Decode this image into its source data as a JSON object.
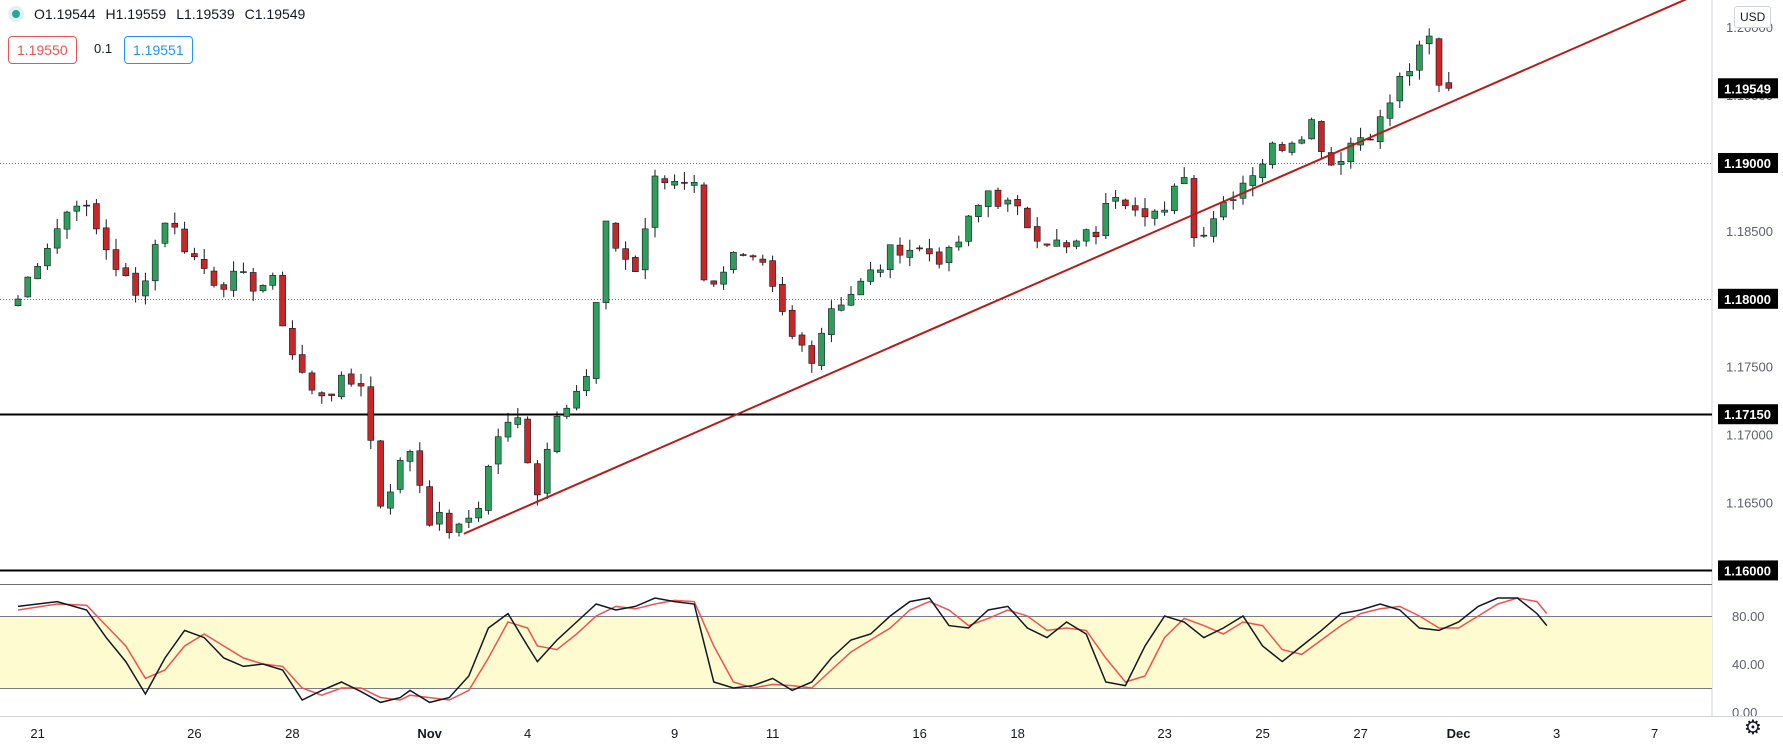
{
  "ohlc": {
    "open": "O1.19544",
    "high": "H1.19559",
    "low": "L1.19539",
    "close": "C1.19549"
  },
  "trade": {
    "sell": "1.19550",
    "spread": "0.1",
    "buy": "1.19551"
  },
  "currency": "USD",
  "colors": {
    "up": "#26a69a",
    "down": "#ef5350",
    "upBody": "#2e9e5b",
    "downBody": "#c62828",
    "trend": "#b71c1c",
    "stochK": "#131722",
    "stochD": "#ef5350",
    "band": "#fffbd0"
  },
  "icons": {
    "symbol": "status-dot-icon",
    "settings": "gear-icon"
  },
  "chart_data": [
    {
      "type": "candlestick",
      "title": "",
      "ylim": [
        1.159,
        1.202
      ],
      "yticks": [
        1.165,
        1.17,
        1.175,
        1.18,
        1.185,
        1.19,
        1.195,
        1.2
      ],
      "xlabels": [
        "21",
        "26",
        "28",
        "Nov",
        "4",
        "9",
        "11",
        "16",
        "18",
        "23",
        "25",
        "27",
        "Dec",
        "3",
        "7"
      ],
      "xlabel_index": [
        2,
        18,
        28,
        42,
        52,
        67,
        77,
        92,
        102,
        117,
        127,
        137,
        147,
        157,
        167
      ],
      "last_price": "1.19549",
      "horizontal_levels": [
        {
          "value": 1.19,
          "label": "1.19000",
          "style": "dotted"
        },
        {
          "value": 1.18,
          "label": "1.18000",
          "style": "dotted"
        },
        {
          "value": 1.1715,
          "label": "1.17150",
          "style": "solid"
        },
        {
          "value": 1.16,
          "label": "1.16000",
          "style": "solid"
        }
      ],
      "trendline": {
        "from": {
          "i": 45.5,
          "price": 1.1627
        },
        "to": {
          "i": 171,
          "price": 1.2023
        }
      },
      "waypoints": [
        [
          0,
          1.18
        ],
        [
          2,
          1.183
        ],
        [
          6,
          1.1875
        ],
        [
          8,
          1.185
        ],
        [
          12,
          1.18
        ],
        [
          15,
          1.186
        ],
        [
          18,
          1.183
        ],
        [
          20,
          1.1815
        ],
        [
          26,
          1.181
        ],
        [
          28,
          1.176
        ],
        [
          30,
          1.173
        ],
        [
          35,
          1.174
        ],
        [
          37,
          1.165
        ],
        [
          40,
          1.169
        ],
        [
          42,
          1.164
        ],
        [
          45,
          1.1628
        ],
        [
          47,
          1.165
        ],
        [
          49,
          1.17
        ],
        [
          51,
          1.171
        ],
        [
          53,
          1.166
        ],
        [
          55,
          1.172
        ],
        [
          58,
          1.174
        ],
        [
          60,
          1.185
        ],
        [
          63,
          1.182
        ],
        [
          65,
          1.1885
        ],
        [
          69,
          1.189
        ],
        [
          70,
          1.181
        ],
        [
          73,
          1.183
        ],
        [
          76,
          1.182
        ],
        [
          79,
          1.177
        ],
        [
          81,
          1.176
        ],
        [
          83,
          1.1795
        ],
        [
          86,
          1.181
        ],
        [
          90,
          1.184
        ],
        [
          95,
          1.183
        ],
        [
          99,
          1.188
        ],
        [
          104,
          1.185
        ],
        [
          107,
          1.1835
        ],
        [
          110,
          1.185
        ],
        [
          112,
          1.188
        ],
        [
          117,
          1.186
        ],
        [
          119,
          1.1895
        ],
        [
          120,
          1.1845
        ],
        [
          124,
          1.188
        ],
        [
          128,
          1.191
        ],
        [
          132,
          1.193
        ],
        [
          134,
          1.19
        ],
        [
          136,
          1.1915
        ],
        [
          139,
          1.193
        ],
        [
          141,
          1.196
        ],
        [
          143,
          1.198
        ],
        [
          144,
          1.199
        ],
        [
          145,
          1.1955
        ],
        [
          146,
          1.1955
        ]
      ]
    },
    {
      "type": "line",
      "title": "",
      "ylim": [
        0,
        100
      ],
      "yticks": [
        0,
        40,
        80
      ],
      "band": [
        20,
        80
      ],
      "series": [
        {
          "values": [
            [
              0,
              88
            ],
            [
              4,
              92
            ],
            [
              7,
              85
            ],
            [
              9,
              62
            ],
            [
              11,
              42
            ],
            [
              13,
              15
            ],
            [
              15,
              45
            ],
            [
              17,
              68
            ],
            [
              19,
              62
            ],
            [
              21,
              45
            ],
            [
              23,
              38
            ],
            [
              25,
              40
            ],
            [
              27,
              35
            ],
            [
              29,
              10
            ],
            [
              31,
              18
            ],
            [
              33,
              25
            ],
            [
              35,
              17
            ],
            [
              37,
              8
            ],
            [
              39,
              12
            ],
            [
              40,
              18
            ],
            [
              42,
              8
            ],
            [
              44,
              12
            ],
            [
              46,
              30
            ],
            [
              48,
              70
            ],
            [
              50,
              82
            ],
            [
              52,
              55
            ],
            [
              53,
              42
            ],
            [
              55,
              60
            ],
            [
              57,
              75
            ],
            [
              59,
              90
            ],
            [
              61,
              85
            ],
            [
              63,
              88
            ],
            [
              65,
              95
            ],
            [
              67,
              92
            ],
            [
              69,
              90
            ],
            [
              71,
              25
            ],
            [
              73,
              20
            ],
            [
              75,
              22
            ],
            [
              77,
              28
            ],
            [
              79,
              18
            ],
            [
              81,
              25
            ],
            [
              83,
              45
            ],
            [
              85,
              60
            ],
            [
              87,
              65
            ],
            [
              89,
              80
            ],
            [
              91,
              92
            ],
            [
              93,
              95
            ],
            [
              95,
              72
            ],
            [
              97,
              70
            ],
            [
              99,
              85
            ],
            [
              101,
              88
            ],
            [
              103,
              70
            ],
            [
              105,
              62
            ],
            [
              107,
              75
            ],
            [
              109,
              65
            ],
            [
              111,
              25
            ],
            [
              113,
              22
            ],
            [
              115,
              55
            ],
            [
              117,
              80
            ],
            [
              119,
              75
            ],
            [
              121,
              62
            ],
            [
              123,
              70
            ],
            [
              125,
              80
            ],
            [
              127,
              55
            ],
            [
              129,
              42
            ],
            [
              131,
              55
            ],
            [
              133,
              68
            ],
            [
              135,
              82
            ],
            [
              137,
              85
            ],
            [
              139,
              90
            ],
            [
              141,
              85
            ],
            [
              143,
              70
            ],
            [
              145,
              68
            ],
            [
              147,
              75
            ],
            [
              149,
              88
            ],
            [
              151,
              95
            ],
            [
              153,
              95
            ],
            [
              155,
              82
            ],
            [
              156,
              72
            ]
          ]
        },
        {
          "values": [
            [
              0,
              85
            ],
            [
              4,
              90
            ],
            [
              7,
              89
            ],
            [
              9,
              72
            ],
            [
              11,
              55
            ],
            [
              13,
              28
            ],
            [
              15,
              35
            ],
            [
              17,
              55
            ],
            [
              19,
              65
            ],
            [
              21,
              55
            ],
            [
              23,
              45
            ],
            [
              25,
              40
            ],
            [
              27,
              38
            ],
            [
              29,
              20
            ],
            [
              31,
              14
            ],
            [
              33,
              20
            ],
            [
              35,
              20
            ],
            [
              37,
              12
            ],
            [
              39,
              10
            ],
            [
              40,
              14
            ],
            [
              42,
              12
            ],
            [
              44,
              10
            ],
            [
              46,
              18
            ],
            [
              48,
              45
            ],
            [
              50,
              75
            ],
            [
              52,
              70
            ],
            [
              53,
              55
            ],
            [
              55,
              52
            ],
            [
              57,
              65
            ],
            [
              59,
              80
            ],
            [
              61,
              88
            ],
            [
              63,
              86
            ],
            [
              65,
              90
            ],
            [
              67,
              93
            ],
            [
              69,
              92
            ],
            [
              71,
              55
            ],
            [
              73,
              25
            ],
            [
              75,
              20
            ],
            [
              77,
              23
            ],
            [
              79,
              22
            ],
            [
              81,
              20
            ],
            [
              83,
              35
            ],
            [
              85,
              50
            ],
            [
              87,
              60
            ],
            [
              89,
              70
            ],
            [
              91,
              85
            ],
            [
              93,
              92
            ],
            [
              95,
              85
            ],
            [
              97,
              72
            ],
            [
              99,
              78
            ],
            [
              101,
              85
            ],
            [
              103,
              80
            ],
            [
              105,
              68
            ],
            [
              107,
              70
            ],
            [
              109,
              68
            ],
            [
              111,
              45
            ],
            [
              113,
              25
            ],
            [
              115,
              30
            ],
            [
              117,
              62
            ],
            [
              119,
              78
            ],
            [
              121,
              72
            ],
            [
              123,
              65
            ],
            [
              125,
              75
            ],
            [
              127,
              72
            ],
            [
              129,
              52
            ],
            [
              131,
              48
            ],
            [
              133,
              60
            ],
            [
              135,
              72
            ],
            [
              137,
              82
            ],
            [
              139,
              86
            ],
            [
              141,
              88
            ],
            [
              143,
              80
            ],
            [
              145,
              70
            ],
            [
              147,
              70
            ],
            [
              149,
              80
            ],
            [
              151,
              90
            ],
            [
              153,
              95
            ],
            [
              155,
              92
            ],
            [
              156,
              82
            ]
          ]
        }
      ]
    }
  ]
}
